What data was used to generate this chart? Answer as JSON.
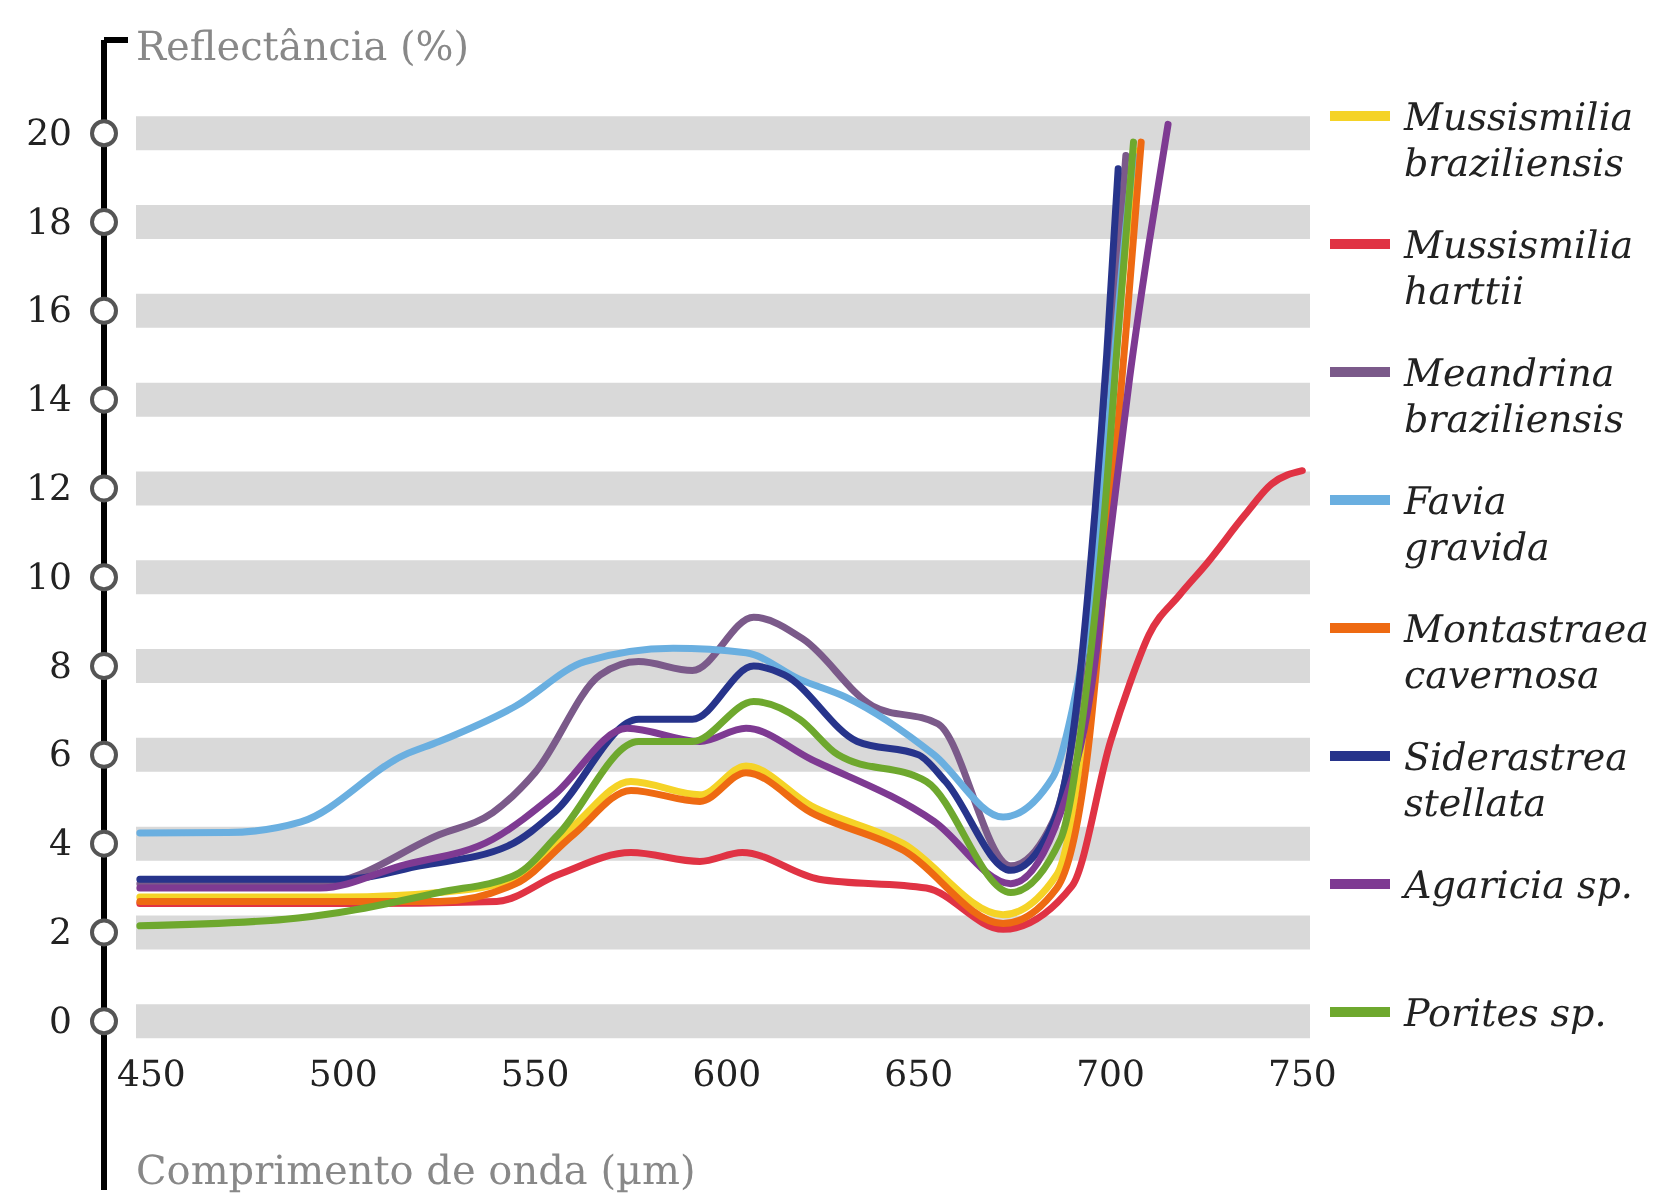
{
  "chart_data": {
    "type": "line",
    "xlabel": "Comprimento de onda (µm)",
    "ylabel": "Reflectância (%)",
    "xlim": [
      446,
      752
    ],
    "xticks": [
      450,
      500,
      550,
      600,
      650,
      700,
      750
    ],
    "ylim": [
      -3.8,
      22.1
    ],
    "yticks": [
      0,
      2,
      4,
      6,
      8,
      10,
      12,
      14,
      16,
      18,
      20
    ],
    "grid": "y",
    "legend": "right",
    "marker": "none",
    "line_style": "solid",
    "series": [
      {
        "name": "Mussismilia braziliensis",
        "color": "#f5d327",
        "x": [
          447,
          500,
          525,
          545,
          560,
          575,
          593,
          605,
          622,
          646,
          672,
          686,
          693,
          698,
          701,
          704,
          707
        ],
        "values": [
          2.8,
          2.8,
          2.9,
          3.2,
          4.4,
          5.4,
          5.1,
          5.75,
          4.85,
          4.0,
          2.4,
          3.3,
          6.5,
          11,
          14.5,
          17.5,
          19.6
        ]
      },
      {
        "name": "Mussismilia harttii",
        "color": "#e03344",
        "x": [
          447,
          500,
          540,
          556,
          575,
          593,
          604,
          624,
          652,
          672,
          690,
          700,
          705,
          710,
          718,
          725,
          735,
          742,
          750
        ],
        "values": [
          2.65,
          2.65,
          2.7,
          3.3,
          3.8,
          3.6,
          3.8,
          3.2,
          3.0,
          2.07,
          3.05,
          6.3,
          7.6,
          8.7,
          9.6,
          10.3,
          11.4,
          12.1,
          12.4
        ]
      },
      {
        "name": "Meandrina braziliensis",
        "color": "#7b5a8a",
        "x": [
          447,
          494,
          525,
          539,
          550,
          567,
          577,
          591,
          607,
          620,
          638,
          655,
          674,
          685,
          692,
          697,
          701,
          704
        ],
        "values": [
          3.1,
          3.1,
          4.2,
          4.7,
          5.6,
          7.8,
          8.1,
          7.9,
          9.1,
          8.6,
          7.1,
          6.7,
          3.5,
          4.5,
          7.5,
          12,
          16,
          19.5
        ]
      },
      {
        "name": "Favia gravida",
        "color": "#6aafe0",
        "x": [
          447,
          470,
          489,
          516,
          525,
          545,
          563,
          586,
          605,
          619,
          631,
          654,
          672,
          685,
          690,
          695,
          698,
          701,
          703,
          706
        ],
        "values": [
          4.24,
          4.25,
          4.49,
          6.0,
          6.3,
          7.1,
          8.1,
          8.4,
          8.3,
          7.7,
          7.3,
          6.0,
          4.6,
          5.5,
          7.0,
          9.5,
          12,
          15,
          17,
          19.5
        ]
      },
      {
        "name": "Montastraea cavernosa",
        "color": "#ee6a12",
        "x": [
          447,
          500,
          525,
          545,
          560,
          575,
          593,
          605,
          622,
          646,
          672,
          686,
          694,
          699,
          704,
          708
        ],
        "values": [
          2.7,
          2.7,
          2.7,
          3.1,
          4.2,
          5.2,
          4.95,
          5.6,
          4.7,
          3.85,
          2.2,
          3.0,
          6.0,
          10.5,
          15.5,
          19.8
        ]
      },
      {
        "name": "Siderastrea stellata",
        "color": "#27348b",
        "x": [
          447,
          500,
          520,
          543,
          555,
          577,
          591,
          607,
          615,
          634,
          650,
          657,
          674,
          685,
          691,
          695,
          699,
          702
        ],
        "values": [
          3.2,
          3.2,
          3.5,
          3.95,
          4.7,
          6.8,
          6.8,
          8.0,
          7.8,
          6.3,
          6.0,
          5.4,
          3.4,
          4.45,
          7.0,
          10.5,
          15,
          19.2
        ]
      },
      {
        "name": "Agaricia sp.",
        "color": "#7e3a92",
        "x": [
          447,
          494,
          515,
          539,
          555,
          574,
          593,
          605,
          622,
          654,
          674,
          687,
          695,
          700,
          705,
          710,
          715
        ],
        "values": [
          3.0,
          3.0,
          3.5,
          4.1,
          5.1,
          6.6,
          6.3,
          6.6,
          5.9,
          4.5,
          3.1,
          4.7,
          7.5,
          11,
          14.5,
          17.5,
          20.2
        ]
      },
      {
        "name": "Porites sp.",
        "color": "#6ea82e",
        "x": [
          447,
          485,
          499,
          525,
          545,
          556,
          577,
          591,
          607,
          619,
          629,
          652,
          674,
          687,
          693,
          698,
          702,
          706
        ],
        "values": [
          2.15,
          2.3,
          2.45,
          2.9,
          3.3,
          4.2,
          6.3,
          6.3,
          7.2,
          6.8,
          6.0,
          5.4,
          2.9,
          4.1,
          7.0,
          11,
          15.5,
          19.8
        ]
      }
    ]
  }
}
